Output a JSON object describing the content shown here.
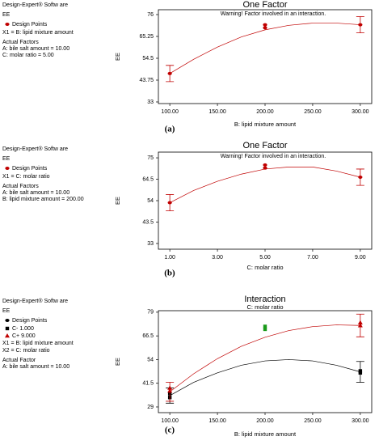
{
  "chart_data": [
    {
      "type": "line",
      "software": "Design-Expert® Softw are",
      "response": "EE",
      "legend_title": "Design Points",
      "legend_color": "#c00000",
      "factor_lines": [
        "X1 = B: lipid mixture amount"
      ],
      "actual_title": "Actual Factors",
      "actual_lines": [
        "A: bile salt amount = 10.00",
        "C: molar ratio = 5.00"
      ],
      "title": "One Factor",
      "warning": "Warning! Factor involved in an interaction.",
      "ylabel": "EE",
      "xlabel": "B: lipid mixture amount",
      "caption": "(a)",
      "xlim": [
        88,
        312
      ],
      "ylim": [
        32.2,
        78.4
      ],
      "xticks": [
        {
          "value": 100,
          "label": "100.00"
        },
        {
          "value": 150,
          "label": "150.00"
        },
        {
          "value": 200,
          "label": "200.00"
        },
        {
          "value": 250,
          "label": "250.00"
        },
        {
          "value": 300,
          "label": "300.00"
        }
      ],
      "yticks": [
        33,
        43.75,
        54.5,
        65.25,
        76
      ],
      "series": [
        {
          "color": "#c00000",
          "marker": "circle",
          "points_x": [
            100,
            200,
            200,
            300
          ],
          "points": [
            47,
            69.5,
            71,
            71
          ],
          "fit_x": [
            100,
            125,
            150,
            175,
            200,
            225,
            250,
            275,
            300
          ],
          "fit": [
            47,
            54,
            60,
            65,
            68.5,
            70.7,
            71.8,
            71.8,
            71
          ],
          "bar_x": [
            100,
            300
          ],
          "bar": [
            47,
            71
          ],
          "bar_err": [
            4,
            4
          ]
        }
      ]
    },
    {
      "type": "line",
      "software": "Design-Expert® Softw are",
      "response": "EE",
      "legend_title": "Design Points",
      "legend_color": "#c00000",
      "factor_lines": [
        "X1 = C: molar ratio"
      ],
      "actual_title": "Actual Factors",
      "actual_lines": [
        "A: bile salt amount = 10.00",
        "B: lipid mixture amount = 200.00"
      ],
      "title": "One Factor",
      "warning": "Warning! Factor involved in an interaction.",
      "ylabel": "EE",
      "xlabel": "C: molar ratio",
      "caption": "(b)",
      "xlim": [
        0.52,
        9.48
      ],
      "ylim": [
        30.2,
        77.8
      ],
      "xticks": [
        {
          "value": 1,
          "label": "1.00"
        },
        {
          "value": 3,
          "label": "3.00"
        },
        {
          "value": 5,
          "label": "5.00"
        },
        {
          "value": 7,
          "label": "7.00"
        },
        {
          "value": 9,
          "label": "9.00"
        }
      ],
      "yticks": [
        33,
        43.5,
        54,
        64.5,
        75
      ],
      "series": [
        {
          "color": "#c00000",
          "marker": "circle",
          "points_x": [
            1,
            5,
            5,
            9
          ],
          "points": [
            53,
            70,
            71.5,
            65.5
          ],
          "fit_x": [
            1,
            2,
            3,
            4,
            5,
            6,
            7,
            8,
            9
          ],
          "fit": [
            53,
            59,
            63.5,
            67,
            69.5,
            70.5,
            70.5,
            68.5,
            65.5
          ],
          "bar_x": [
            1,
            9
          ],
          "bar": [
            53,
            65.5
          ],
          "bar_err": [
            4,
            4
          ]
        }
      ]
    },
    {
      "type": "line",
      "software": "Design-Expert® Softw are",
      "response": "EE",
      "legend_title": "Design Points",
      "legend_color": "#000000",
      "factor_lines": [
        "X1 = B: lipid mixture amount",
        "X2 = C: molar ratio"
      ],
      "actual_title": "Actual Factor",
      "actual_lines": [
        "A: bile salt amount = 10.00"
      ],
      "title": "Interaction",
      "subtitle": "C: molar ratio",
      "ylabel": "EE",
      "xlabel": "B: lipid mixture amount",
      "caption": "(c)",
      "xlim": [
        88,
        312
      ],
      "ylim": [
        26,
        79.8
      ],
      "xticks": [
        {
          "value": 100,
          "label": "100.00"
        },
        {
          "value": 150,
          "label": "150.00"
        },
        {
          "value": 200,
          "label": "200.00"
        },
        {
          "value": 250,
          "label": "250.00"
        },
        {
          "value": 300,
          "label": "300.00"
        }
      ],
      "yticks": [
        29,
        41.5,
        54,
        66.5,
        79
      ],
      "center_points": {
        "color": "#1a9a1a",
        "x": [
          200,
          200
        ],
        "values": [
          70,
          71.5
        ]
      },
      "series": [
        {
          "name": "C- 1.000",
          "color": "#000000",
          "marker": "square",
          "points_x": [
            100,
            100,
            300,
            300
          ],
          "points": [
            34,
            36,
            47,
            48
          ],
          "fit_x": [
            100,
            125,
            150,
            175,
            200,
            225,
            250,
            275,
            300
          ],
          "fit": [
            35,
            42,
            47,
            51,
            53.3,
            54,
            53.3,
            51,
            47.5
          ],
          "bar_x": [
            100,
            300
          ],
          "bar": [
            35,
            47.5
          ],
          "bar_err": [
            4,
            5.5
          ]
        },
        {
          "name": "C+ 9.000",
          "color": "#c00000",
          "marker": "triangle",
          "points_x": [
            100,
            100,
            300,
            300
          ],
          "points": [
            37.5,
            39,
            72,
            73.5
          ],
          "fit_x": [
            100,
            125,
            150,
            175,
            200,
            225,
            250,
            275,
            300
          ],
          "fit": [
            37,
            46.5,
            54.5,
            61,
            65.8,
            69.3,
            71.4,
            72.3,
            72
          ],
          "bar_x": [
            100,
            300
          ],
          "bar": [
            37,
            72
          ],
          "bar_err": [
            5,
            6
          ]
        }
      ]
    }
  ]
}
